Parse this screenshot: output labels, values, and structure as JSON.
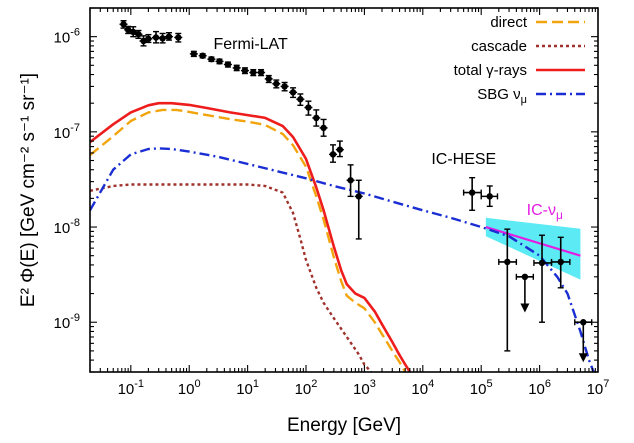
{
  "chart_data": {
    "type": "line",
    "xscale": "log",
    "yscale": "log",
    "xlim": [
      0.02,
      10000000
    ],
    "ylim": [
      3e-10,
      2e-06
    ],
    "xlabel": "Energy [GeV]",
    "ylabel": "E² Φ(E) [GeV cm⁻² s⁻¹ sr⁻¹]",
    "x_tick_labels": [
      {
        "base": "10",
        "exp": "-1",
        "value": 0.1
      },
      {
        "base": "10",
        "exp": "0",
        "value": 1
      },
      {
        "base": "10",
        "exp": "1",
        "value": 10
      },
      {
        "base": "10",
        "exp": "2",
        "value": 100
      },
      {
        "base": "10",
        "exp": "3",
        "value": 1000
      },
      {
        "base": "10",
        "exp": "4",
        "value": 10000
      },
      {
        "base": "10",
        "exp": "5",
        "value": 100000
      },
      {
        "base": "10",
        "exp": "6",
        "value": 1000000
      },
      {
        "base": "10",
        "exp": "7",
        "value": 10000000
      }
    ],
    "y_tick_labels": [
      {
        "base": "10",
        "exp": "-9",
        "value": 1e-09
      },
      {
        "base": "10",
        "exp": "-8",
        "value": 1e-08
      },
      {
        "base": "10",
        "exp": "-7",
        "value": 1e-07
      },
      {
        "base": "10",
        "exp": "-6",
        "value": 1e-06
      }
    ],
    "legend_position": "top-right",
    "series": [
      {
        "name": "direct",
        "color": "#f2a40d",
        "dash": "dashed",
        "x": [
          0.02,
          0.05,
          0.1,
          0.2,
          0.35,
          0.6,
          1,
          2,
          5,
          10,
          20,
          40,
          60,
          100,
          150,
          200,
          300,
          400,
          500,
          700,
          1000,
          1500,
          2000,
          3000,
          4000,
          5000
        ],
        "y": [
          5.7e-08,
          9e-08,
          1.3e-07,
          1.6e-07,
          1.7e-07,
          1.7e-07,
          1.62e-07,
          1.5e-07,
          1.36e-07,
          1.28e-07,
          1.18e-07,
          9.5e-08,
          7.2e-08,
          4.3e-08,
          2.1e-08,
          1.2e-08,
          4.8e-09,
          2.7e-09,
          1.9e-09,
          1.6e-09,
          1.4e-09,
          1e-09,
          7.5e-10,
          5e-10,
          3.8e-10,
          3e-10
        ]
      },
      {
        "name": "cascade",
        "color": "#a0322d",
        "dash": "dotted",
        "x": [
          0.02,
          0.05,
          0.1,
          0.2,
          0.5,
          1,
          3,
          10,
          20,
          40,
          60,
          80,
          100,
          150,
          200,
          300,
          500,
          800,
          1000,
          1300
        ],
        "y": [
          2.4e-08,
          2.7e-08,
          2.8e-08,
          2.8e-08,
          2.8e-08,
          2.8e-08,
          2.8e-08,
          2.8e-08,
          2.7e-08,
          2.3e-08,
          1.4e-08,
          7.5e-09,
          4.5e-09,
          2.3e-09,
          1.6e-09,
          1.1e-09,
          7e-10,
          4.6e-10,
          3.6e-10,
          3e-10
        ]
      },
      {
        "name": "total γ-rays",
        "color": "#ee1c1c",
        "dash": "solid",
        "x": [
          0.02,
          0.05,
          0.1,
          0.2,
          0.3,
          0.5,
          1,
          2,
          5,
          10,
          20,
          40,
          60,
          100,
          150,
          200,
          300,
          400,
          500,
          700,
          1000,
          1500,
          2000,
          3000,
          4000,
          5000,
          6000
        ],
        "y": [
          7.8e-08,
          1.2e-07,
          1.6e-07,
          1.9e-07,
          2e-07,
          2e-07,
          1.92e-07,
          1.78e-07,
          1.6e-07,
          1.5e-07,
          1.4e-07,
          1.15e-07,
          8.8e-08,
          5.2e-08,
          2.6e-08,
          1.5e-08,
          6.2e-09,
          3.5e-09,
          2.5e-09,
          2e-09,
          1.8e-09,
          1.3e-09,
          9.5e-10,
          6.2e-10,
          4.5e-10,
          3.6e-10,
          3e-10
        ]
      },
      {
        "name": "SBG ν_μ",
        "color": "#1a2ed4",
        "dash": "dashdot",
        "x": [
          0.02,
          0.05,
          0.1,
          0.2,
          0.3,
          0.5,
          1,
          3,
          10,
          30,
          100,
          300,
          1000,
          3000,
          10000,
          30000,
          100000,
          300000,
          1000000,
          2000000,
          3000000,
          5000000,
          7000000,
          10000000
        ],
        "y": [
          1.5e-08,
          4e-08,
          5.8e-08,
          6.6e-08,
          6.7e-08,
          6.6e-08,
          6.2e-08,
          5.5e-08,
          4.6e-08,
          3.9e-08,
          3.25e-08,
          2.7e-08,
          2.25e-08,
          1.85e-08,
          1.5e-08,
          1.25e-08,
          1e-08,
          8e-09,
          5e-09,
          3e-09,
          2e-09,
          8e-10,
          4e-10,
          2.3e-10
        ]
      }
    ],
    "ic_nu": {
      "label_main": "IC-ν",
      "label_sub": "μ",
      "color": "#e31ee3",
      "band_color": "#3fe8f2",
      "x": [
        120000,
        5000000
      ],
      "y": [
        1e-08,
        5e-09
      ],
      "band_upper": [
        1.25e-08,
        9.6e-09
      ],
      "band_lower": [
        8e-09,
        2.8e-09
      ]
    },
    "fermi_lat": {
      "label": "Fermi-LAT",
      "color": "#000000",
      "points": [
        {
          "x": 0.075,
          "y": 1.35e-06,
          "yerr": [
            1.2e-07,
            1.2e-07
          ]
        },
        {
          "x": 0.09,
          "y": 1.18e-06,
          "yerr": [
            1e-07,
            1e-07
          ]
        },
        {
          "x": 0.11,
          "y": 1.12e-06,
          "yerr": [
            1.2e-07,
            1.5e-07
          ]
        },
        {
          "x": 0.135,
          "y": 1.06e-06,
          "yerr": [
            1e-07,
            1e-07
          ]
        },
        {
          "x": 0.165,
          "y": 9e-07,
          "yerr": [
            1e-07,
            1.2e-07
          ]
        },
        {
          "x": 0.2,
          "y": 9.5e-07,
          "yerr": [
            8e-08,
            1e-07
          ]
        },
        {
          "x": 0.27,
          "y": 9.8e-07,
          "yerr": [
            1.2e-07,
            1.5e-07
          ]
        },
        {
          "x": 0.35,
          "y": 9.6e-07,
          "yerr": [
            1e-07,
            1.2e-07
          ]
        },
        {
          "x": 0.45,
          "y": 1e-06,
          "yerr": [
            8e-08,
            1e-07
          ]
        },
        {
          "x": 0.65,
          "y": 9.8e-07,
          "yerr": [
            1e-07,
            1e-07
          ]
        },
        {
          "x": 1.2,
          "y": 6.6e-07,
          "yerr": [
            4e-08,
            4e-08
          ]
        },
        {
          "x": 1.7,
          "y": 6.3e-07,
          "yerr": [
            3e-08,
            3e-08
          ]
        },
        {
          "x": 2.4,
          "y": 5.8e-07,
          "yerr": [
            3e-08,
            3e-08
          ]
        },
        {
          "x": 3.3,
          "y": 5.5e-07,
          "yerr": [
            3e-08,
            3e-08
          ]
        },
        {
          "x": 4.6,
          "y": 5.1e-07,
          "yerr": [
            3e-08,
            3e-08
          ]
        },
        {
          "x": 6.5,
          "y": 4.7e-07,
          "yerr": [
            3e-08,
            3e-08
          ]
        },
        {
          "x": 9,
          "y": 4.4e-07,
          "yerr": [
            3e-08,
            3e-08
          ]
        },
        {
          "x": 12.5,
          "y": 4.2e-07,
          "yerr": [
            3e-08,
            3e-08
          ]
        },
        {
          "x": 17,
          "y": 4.2e-07,
          "yerr": [
            3e-08,
            3e-08
          ]
        },
        {
          "x": 23,
          "y": 3.6e-07,
          "yerr": [
            3e-08,
            3e-08
          ]
        },
        {
          "x": 31,
          "y": 3.2e-07,
          "yerr": [
            3e-08,
            3e-08
          ]
        },
        {
          "x": 43,
          "y": 3e-07,
          "yerr": [
            3e-08,
            3e-08
          ]
        },
        {
          "x": 60,
          "y": 2.6e-07,
          "yerr": [
            3e-08,
            3e-08
          ]
        },
        {
          "x": 80,
          "y": 2.2e-07,
          "yerr": [
            3e-08,
            3e-08
          ]
        },
        {
          "x": 110,
          "y": 1.8e-07,
          "yerr": [
            3e-08,
            3e-08
          ]
        },
        {
          "x": 150,
          "y": 1.4e-07,
          "yerr": [
            2.5e-08,
            3e-08
          ]
        },
        {
          "x": 200,
          "y": 1.1e-07,
          "yerr": [
            2e-08,
            2.5e-08
          ]
        },
        {
          "x": 290,
          "y": 5.8e-08,
          "yerr": [
            1e-08,
            1.5e-08
          ]
        },
        {
          "x": 380,
          "y": 6.5e-08,
          "yerr": [
            1e-08,
            1.5e-08
          ]
        },
        {
          "x": 580,
          "y": 3.1e-08,
          "yerr": [
            1e-08,
            1.4e-08
          ]
        },
        {
          "x": 800,
          "y": 2.1e-08,
          "yerr": [
            1.35e-08,
            1e-08
          ]
        }
      ]
    },
    "ic_hese": {
      "label": "IC-HESE",
      "color": "#000000",
      "points": [
        {
          "x": 70000,
          "y": 2.3e-08,
          "xerr": [
            20000,
            30000
          ],
          "yerr": [
            8e-09,
            1e-08
          ]
        },
        {
          "x": 140000,
          "y": 2.1e-08,
          "xerr": [
            40000,
            50000
          ],
          "yerr": [
            4.5e-09,
            6e-09
          ]
        },
        {
          "x": 280000,
          "y": 4.3e-09,
          "xerr": [
            80000,
            120000
          ],
          "yerr": [
            3.8e-09,
            5.2e-09
          ]
        },
        {
          "x": 560000,
          "y": 3e-09,
          "xerr": [
            160000,
            220000
          ],
          "yerr": [
            1.5e-09,
            0
          ],
          "upper_limit": true
        },
        {
          "x": 1100000,
          "y": 4.2e-09,
          "xerr": [
            300000,
            500000
          ],
          "yerr": [
            3.2e-09,
            4e-09
          ]
        },
        {
          "x": 2300000,
          "y": 4.3e-09,
          "xerr": [
            700000,
            1000000
          ],
          "yerr": [
            2e-09,
            3.5e-09
          ]
        },
        {
          "x": 5600000,
          "y": 1e-09,
          "xerr": [
            1600000,
            2200000
          ],
          "yerr": [
            5.5e-10,
            0
          ],
          "upper_limit": true
        }
      ]
    }
  }
}
